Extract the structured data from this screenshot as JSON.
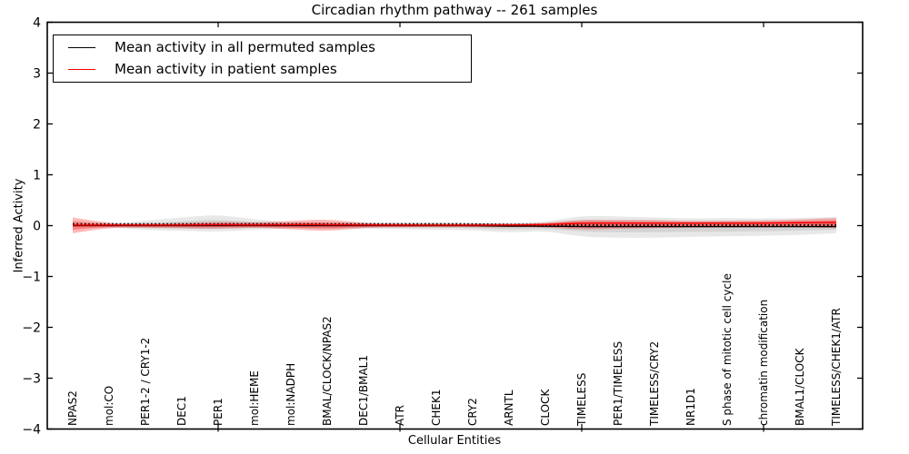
{
  "chart_data": {
    "type": "line",
    "title": "Circadian rhythm pathway -- 261 samples",
    "xlabel": "Cellular Entities",
    "ylabel": "Inferred Activity",
    "ylim": [
      -4,
      4
    ],
    "grid": false,
    "legend_position": "upper left",
    "ytick_labels": [
      "4",
      "3",
      "2",
      "1",
      "0",
      "−1",
      "−2",
      "−3",
      "−4"
    ],
    "ytick_values": [
      4,
      3,
      2,
      1,
      0,
      -1,
      -2,
      -3,
      -4
    ],
    "x_major_tick_indices": [
      4,
      9,
      14,
      19
    ],
    "categories": [
      "NPAS2",
      "mol:CO",
      "PER1-2 / CRY1-2",
      "DEC1",
      "PER1",
      "mol:HEME",
      "mol:NADPH",
      "BMAL/CLOCK/NPAS2",
      "DEC1/BMAL1",
      "ATR",
      "CHEK1",
      "CRY2",
      "ARNTL",
      "CLOCK",
      "TIMELESS",
      "PER1/TIMELESS",
      "TIMELESS/CRY2",
      "NR1D1",
      "S phase of mitotic cell cycle",
      "chromatin modification",
      "BMAL1/CLOCK",
      "TIMELESS/CHEK1/ATR"
    ],
    "legend": [
      {
        "label": "Mean activity in all permuted samples",
        "color": "#000000"
      },
      {
        "label": "Mean activity in patient samples",
        "color": "#ff0000"
      }
    ],
    "series": [
      {
        "name": "permuted_mean",
        "color": "#000000",
        "values": [
          0,
          0,
          0,
          0,
          0,
          0,
          0,
          0,
          0,
          0,
          0,
          0,
          -0.01,
          -0.01,
          -0.02,
          -0.02,
          -0.02,
          -0.02,
          -0.02,
          -0.02,
          -0.02,
          -0.02
        ]
      },
      {
        "name": "patient_mean",
        "color": "#ff0000",
        "values": [
          0.01,
          0.01,
          0.01,
          0.01,
          0.02,
          0.01,
          0.02,
          0.02,
          0.01,
          0.01,
          0.01,
          0.01,
          0.01,
          0.02,
          0.05,
          0.05,
          0.05,
          0.05,
          0.05,
          0.05,
          0.06,
          0.06
        ]
      }
    ],
    "bands": [
      {
        "name": "permuted_spread_outer",
        "color": "rgba(110,110,110,0.16)",
        "upper": [
          0.03,
          0.03,
          0.1,
          0.16,
          0.22,
          0.12,
          0.07,
          0.06,
          0.06,
          0.07,
          0.07,
          0.06,
          0.05,
          0.07,
          0.2,
          0.18,
          0.16,
          0.14,
          0.15,
          0.14,
          0.15,
          0.17
        ],
        "lower": [
          -0.03,
          -0.03,
          -0.09,
          -0.1,
          -0.12,
          -0.08,
          -0.05,
          -0.06,
          -0.06,
          -0.07,
          -0.08,
          -0.09,
          -0.14,
          -0.1,
          -0.22,
          -0.24,
          -0.24,
          -0.22,
          -0.21,
          -0.2,
          -0.18,
          -0.15
        ]
      },
      {
        "name": "permuted_spread_inner",
        "color": "rgba(110,110,110,0.16)",
        "upper": [
          0.02,
          0.02,
          0.05,
          0.09,
          0.12,
          0.07,
          0.04,
          0.03,
          0.03,
          0.04,
          0.04,
          0.03,
          0.03,
          0.04,
          0.11,
          0.1,
          0.09,
          0.08,
          0.08,
          0.08,
          0.08,
          0.09
        ],
        "lower": [
          -0.02,
          -0.02,
          -0.05,
          -0.06,
          -0.07,
          -0.04,
          -0.03,
          -0.03,
          -0.03,
          -0.04,
          -0.04,
          -0.05,
          -0.08,
          -0.06,
          -0.12,
          -0.13,
          -0.13,
          -0.12,
          -0.12,
          -0.11,
          -0.1,
          -0.08
        ]
      },
      {
        "name": "patient_spread_outer",
        "color": "rgba(255,0,0,0.28)",
        "upper": [
          0.16,
          0.04,
          0.04,
          0.05,
          0.08,
          0.06,
          0.09,
          0.13,
          0.05,
          0.04,
          0.04,
          0.04,
          0.04,
          0.05,
          0.12,
          0.11,
          0.11,
          0.09,
          0.1,
          0.1,
          0.12,
          0.15
        ],
        "lower": [
          -0.15,
          -0.04,
          -0.04,
          -0.05,
          -0.06,
          -0.04,
          -0.07,
          -0.11,
          -0.04,
          -0.03,
          -0.03,
          -0.03,
          -0.03,
          -0.03,
          -0.08,
          -0.06,
          -0.05,
          -0.04,
          -0.04,
          -0.03,
          -0.03,
          -0.05
        ]
      },
      {
        "name": "patient_spread_inner",
        "color": "rgba(255,0,0,0.30)",
        "upper": [
          0.09,
          0.02,
          0.02,
          0.03,
          0.05,
          0.04,
          0.05,
          0.07,
          0.03,
          0.02,
          0.02,
          0.02,
          0.02,
          0.03,
          0.08,
          0.07,
          0.07,
          0.06,
          0.07,
          0.07,
          0.08,
          0.1
        ],
        "lower": [
          -0.08,
          -0.02,
          -0.02,
          -0.03,
          -0.03,
          -0.02,
          -0.04,
          -0.06,
          -0.02,
          -0.02,
          -0.02,
          -0.02,
          -0.02,
          -0.02,
          -0.04,
          -0.03,
          -0.02,
          -0.02,
          -0.02,
          -0.01,
          -0.01,
          -0.02
        ]
      }
    ]
  },
  "colors": {
    "frame": "#000000",
    "background": "#ffffff",
    "permuted_line": "#000000",
    "patient_line": "#ff0000"
  }
}
